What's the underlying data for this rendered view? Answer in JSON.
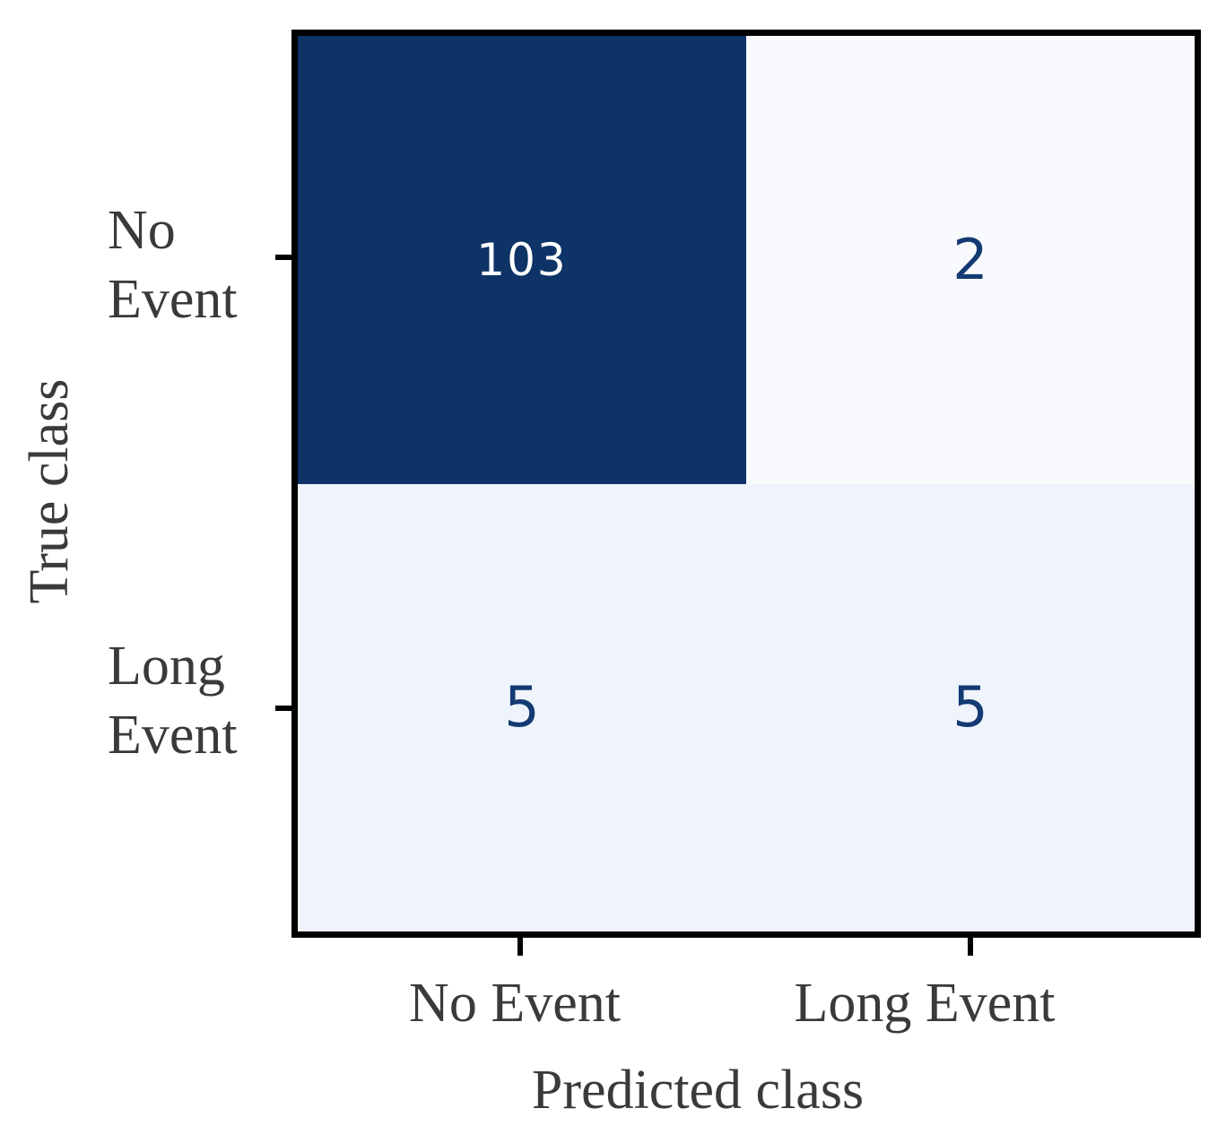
{
  "chart_data": {
    "type": "heatmap",
    "subtype": "confusion-matrix",
    "title": "",
    "xlabel": "Predicted class",
    "ylabel": "True class",
    "x_categories": [
      "No Event",
      "Long Event"
    ],
    "y_categories": [
      "No Event",
      "Long Event"
    ],
    "matrix": [
      [
        103,
        2
      ],
      [
        5,
        5
      ]
    ],
    "colormap": "Blues",
    "legend": "none",
    "grid": "off",
    "colors": {
      "cell_fill": [
        [
          "#0e3366",
          "#f8fafd"
        ],
        [
          "#eff3fc",
          "#eff3fc"
        ]
      ],
      "cell_text": [
        [
          "#ffffff",
          "#133a72"
        ],
        [
          "#133a72",
          "#133a72"
        ]
      ],
      "axis_text": "#3a3a3a",
      "axes_border": "#000000"
    }
  },
  "cells": {
    "r0c0": "103",
    "r0c1": "2",
    "r1c0": "5",
    "r1c1": "5"
  },
  "y_ticks": {
    "row0": "No\nEvent",
    "row1": "Long\nEvent"
  },
  "x_ticks": {
    "col0": "No Event",
    "col1": "Long Event"
  },
  "labels": {
    "x": "Predicted class",
    "y": "True class"
  }
}
